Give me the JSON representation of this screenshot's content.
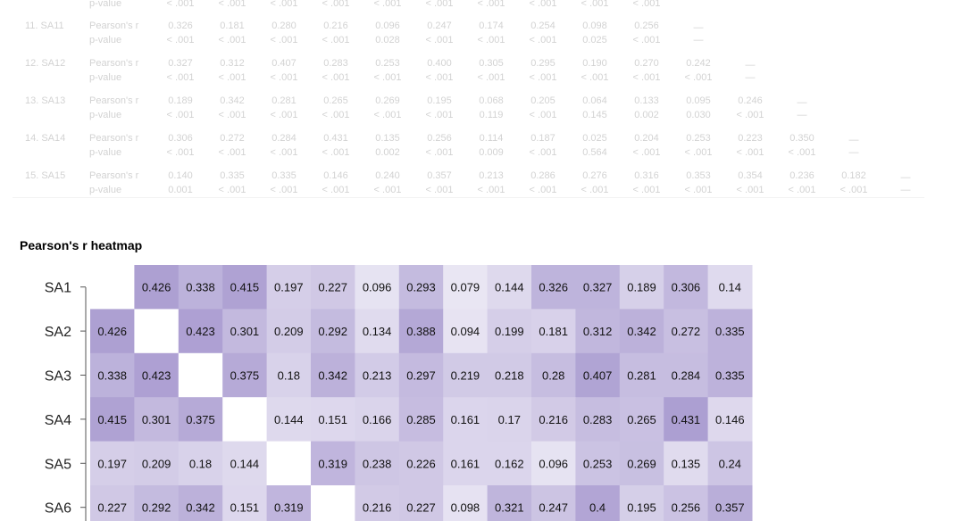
{
  "faded_table": {
    "top_partial": {
      "stat": "p-value",
      "pvals": [
        "< .001",
        "< .001",
        "< .001",
        "< .001",
        "< .001",
        "< .001",
        "< .001",
        "< .001",
        "< .001",
        "< .001"
      ]
    },
    "rows": [
      {
        "label": "11. SA11",
        "r_label": "Pearson's r",
        "p_label": "p-value",
        "r": [
          "0.326",
          "0.181",
          "0.280",
          "0.216",
          "0.096",
          "0.247",
          "0.174",
          "0.254",
          "0.098",
          "0.256"
        ],
        "p": [
          "< .001",
          "< .001",
          "< .001",
          "< .001",
          "0.028",
          "< .001",
          "< .001",
          "< .001",
          "0.025",
          "< .001"
        ],
        "dash": "—"
      },
      {
        "label": "12. SA12",
        "r_label": "Pearson's r",
        "p_label": "p-value",
        "r": [
          "0.327",
          "0.312",
          "0.407",
          "0.283",
          "0.253",
          "0.400",
          "0.305",
          "0.295",
          "0.190",
          "0.270",
          "0.242"
        ],
        "p": [
          "< .001",
          "< .001",
          "< .001",
          "< .001",
          "< .001",
          "< .001",
          "< .001",
          "< .001",
          "< .001",
          "< .001",
          "< .001"
        ],
        "dash": "—"
      },
      {
        "label": "13. SA13",
        "r_label": "Pearson's r",
        "p_label": "p-value",
        "r": [
          "0.189",
          "0.342",
          "0.281",
          "0.265",
          "0.269",
          "0.195",
          "0.068",
          "0.205",
          "0.064",
          "0.133",
          "0.095",
          "0.246"
        ],
        "p": [
          "< .001",
          "< .001",
          "< .001",
          "< .001",
          "< .001",
          "< .001",
          "0.119",
          "< .001",
          "0.145",
          "0.002",
          "0.030",
          "< .001"
        ],
        "dash": "—"
      },
      {
        "label": "14. SA14",
        "r_label": "Pearson's r",
        "p_label": "p-value",
        "r": [
          "0.306",
          "0.272",
          "0.284",
          "0.431",
          "0.135",
          "0.256",
          "0.114",
          "0.187",
          "0.025",
          "0.204",
          "0.253",
          "0.223",
          "0.350"
        ],
        "p": [
          "< .001",
          "< .001",
          "< .001",
          "< .001",
          "0.002",
          "< .001",
          "0.009",
          "< .001",
          "0.564",
          "< .001",
          "< .001",
          "< .001",
          "< .001"
        ],
        "dash": "—"
      },
      {
        "label": "15. SA15",
        "r_label": "Pearson's r",
        "p_label": "p-value",
        "r": [
          "0.140",
          "0.335",
          "0.335",
          "0.146",
          "0.240",
          "0.357",
          "0.213",
          "0.286",
          "0.276",
          "0.316",
          "0.353",
          "0.354",
          "0.236",
          "0.182"
        ],
        "p": [
          "0.001",
          "< .001",
          "< .001",
          "< .001",
          "< .001",
          "< .001",
          "< .001",
          "< .001",
          "< .001",
          "< .001",
          "< .001",
          "< .001",
          "< .001",
          "< .001"
        ],
        "dash": "—"
      }
    ]
  },
  "heatmap_title": "Pearson's r heatmap",
  "chart_data": {
    "type": "heatmap",
    "title": "Pearson's r heatmap",
    "row_labels": [
      "SA1",
      "SA2",
      "SA3",
      "SA4",
      "SA5",
      "SA6"
    ],
    "column_count": 15,
    "values": [
      [
        null,
        "0.426",
        "0.338",
        "0.415",
        "0.197",
        "0.227",
        "0.096",
        "0.293",
        "0.079",
        "0.144",
        "0.326",
        "0.327",
        "0.189",
        "0.306",
        "0.14"
      ],
      [
        "0.426",
        null,
        "0.423",
        "0.301",
        "0.209",
        "0.292",
        "0.134",
        "0.388",
        "0.094",
        "0.199",
        "0.181",
        "0.312",
        "0.342",
        "0.272",
        "0.335"
      ],
      [
        "0.338",
        "0.423",
        null,
        "0.375",
        "0.18",
        "0.342",
        "0.213",
        "0.297",
        "0.219",
        "0.218",
        "0.28",
        "0.407",
        "0.281",
        "0.284",
        "0.335"
      ],
      [
        "0.415",
        "0.301",
        "0.375",
        null,
        "0.144",
        "0.151",
        "0.166",
        "0.285",
        "0.161",
        "0.17",
        "0.216",
        "0.283",
        "0.265",
        "0.431",
        "0.146"
      ],
      [
        "0.197",
        "0.209",
        "0.18",
        "0.144",
        null,
        "0.319",
        "0.238",
        "0.226",
        "0.161",
        "0.162",
        "0.096",
        "0.253",
        "0.269",
        "0.135",
        "0.24"
      ],
      [
        "0.227",
        "0.292",
        "0.342",
        "0.151",
        "0.319",
        null,
        "0.216",
        "0.227",
        "0.098",
        "0.321",
        "0.247",
        "0.4",
        "0.195",
        "0.256",
        "0.357"
      ]
    ],
    "color_low": "#f7f6fb",
    "color_high": "#a99bd0",
    "value_range": [
      0,
      0.45
    ],
    "grid": false,
    "legend": "none"
  }
}
